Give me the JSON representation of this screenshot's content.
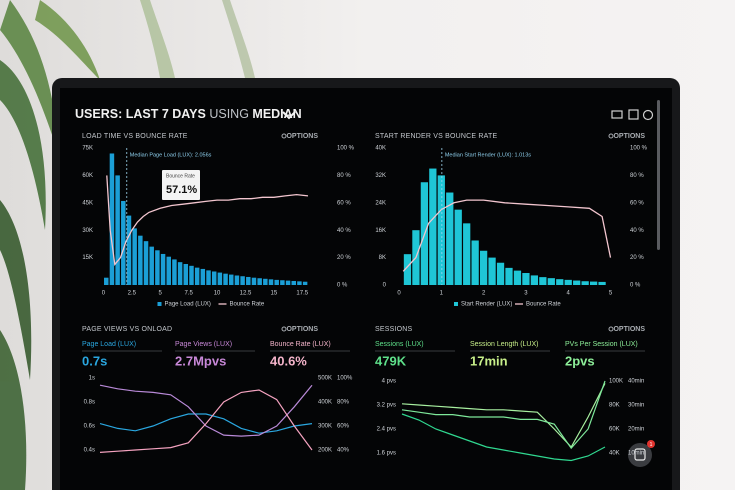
{
  "header": {
    "title": [
      "USERS:",
      "LAST 7 DAYS",
      "USING",
      "MEDIAN"
    ]
  },
  "chat_badge": 1,
  "panels": [
    {
      "title": "LOAD TIME VS BOUNCE RATE",
      "options": "OPTIONS",
      "chart": {
        "type": "histogram",
        "annotation": "Median Page Load (LUX): 2.056s",
        "median": 2.056,
        "tooltip": {
          "title": "Bounce Rate",
          "text": "57.1%"
        },
        "series": [
          {
            "name": "Page Load (LUX)",
            "color": "#1b9fd6"
          },
          {
            "name": "Bounce Rate",
            "color": "#f3c6cf"
          }
        ],
        "bins": [
          0,
          0.5,
          1,
          1.5,
          2,
          2.5,
          3,
          3.5,
          4,
          4.5,
          5,
          5.5,
          6,
          6.5,
          7,
          7.5,
          8,
          8.5,
          9,
          9.5,
          10,
          10.5,
          11,
          11.5,
          12,
          12.5,
          13,
          13.5,
          14,
          14.5,
          15,
          15.5,
          16,
          16.5,
          17,
          17.5,
          18
        ],
        "counts": [
          4000,
          72000,
          60000,
          46000,
          38000,
          31000,
          27000,
          24000,
          21000,
          19000,
          17000,
          15500,
          14000,
          12500,
          11500,
          10500,
          9500,
          8800,
          8000,
          7400,
          6800,
          6200,
          5700,
          5200,
          4800,
          4400,
          4000,
          3700,
          3400,
          3100,
          2800,
          2600,
          2400,
          2200,
          2000,
          1800
        ],
        "line": {
          "x": [
            0.3,
            0.6,
            1,
            1.5,
            2,
            2.5,
            3,
            3.5,
            4,
            5,
            6,
            7,
            8,
            9,
            10,
            11,
            12,
            13,
            14,
            15,
            16,
            17,
            18
          ],
          "values": [
            80,
            40,
            15,
            20,
            32,
            40,
            46,
            50,
            53,
            56,
            58,
            59,
            60,
            61,
            62,
            62,
            63,
            63,
            64,
            64,
            65,
            66,
            65
          ]
        },
        "xlim": [
          -0.3,
          19.5
        ],
        "xticks": [
          0,
          2.5,
          5,
          7.5,
          10,
          12.5,
          15,
          17.5
        ],
        "ylim": [
          0,
          75000
        ],
        "yticks": [
          {
            "value": 15000,
            "label": "15K"
          },
          {
            "value": 30000,
            "label": "30K"
          },
          {
            "value": 45000,
            "label": "45K"
          },
          {
            "value": 60000,
            "label": "60K"
          },
          {
            "value": 75000,
            "label": "75K"
          }
        ],
        "y2lim": [
          0,
          100
        ],
        "y2ticks": [
          {
            "value": 0,
            "label": "0 %"
          },
          {
            "value": 20,
            "label": "20 %"
          },
          {
            "value": 40,
            "label": "40 %"
          },
          {
            "value": 60,
            "label": "60 %"
          },
          {
            "value": 80,
            "label": "80 %"
          },
          {
            "value": 100,
            "label": "100 %"
          }
        ]
      }
    },
    {
      "title": "START RENDER VS BOUNCE RATE",
      "options": "OPTIONS",
      "chart": {
        "type": "histogram",
        "annotation": "Median Start Render (LUX): 1.013s",
        "median": 1.013,
        "series": [
          {
            "name": "Start Render (LUX)",
            "color": "#1fc6d6"
          },
          {
            "name": "Bounce Rate",
            "color": "#f3c6cf"
          }
        ],
        "bins": [
          0.1,
          0.3,
          0.5,
          0.7,
          0.9,
          1.1,
          1.3,
          1.5,
          1.7,
          1.9,
          2.1,
          2.3,
          2.5,
          2.7,
          2.9,
          3.1,
          3.3,
          3.5,
          3.7,
          3.9,
          4.1,
          4.3,
          4.5,
          4.7,
          4.9
        ],
        "counts": [
          9000,
          16000,
          30000,
          34000,
          32000,
          27000,
          22000,
          18000,
          13000,
          10000,
          8000,
          6500,
          5000,
          4200,
          3500,
          2800,
          2300,
          2000,
          1700,
          1500,
          1300,
          1100,
          1000,
          900
        ],
        "line": {
          "x": [
            0.1,
            0.4,
            0.7,
            1,
            1.3,
            1.6,
            2,
            2.5,
            3,
            3.5,
            4,
            4.5,
            4.8,
            5
          ],
          "values": [
            10,
            20,
            45,
            55,
            60,
            62,
            62,
            60,
            59,
            58,
            57,
            56,
            50,
            20
          ]
        },
        "xlim": [
          0,
          5.2
        ],
        "xticks": [
          0,
          1,
          2,
          3,
          4,
          5
        ],
        "ylim": [
          0,
          40000
        ],
        "yticks": [
          0,
          {
            "value": 8000,
            "label": "8K"
          },
          {
            "value": 16000,
            "label": "16K"
          },
          {
            "value": 24000,
            "label": "24K"
          },
          {
            "value": 32000,
            "label": "32K"
          },
          {
            "value": 40000,
            "label": "40K"
          }
        ],
        "y2lim": [
          0,
          100
        ],
        "y2ticks": [
          {
            "value": 0,
            "label": "0 %"
          },
          {
            "value": 20,
            "label": "20 %"
          },
          {
            "value": 40,
            "label": "40 %"
          },
          {
            "value": 60,
            "label": "60 %"
          },
          {
            "value": 80,
            "label": "80 %"
          },
          {
            "value": 100,
            "label": "100 %"
          }
        ]
      }
    },
    {
      "title": "PAGE VIEWS VS ONLOAD",
      "options": "OPTIONS",
      "metrics": [
        {
          "label": "Page Load (LUX)",
          "value": "0.7s",
          "color": "#2aa7e0"
        },
        {
          "label": "Page Views (LUX)",
          "value": "2.7Mpvs",
          "color": "#c888d8"
        },
        {
          "label": "Bounce Rate (LUX)",
          "value": "40.6%",
          "color": "#f4b4ca"
        }
      ],
      "chart": {
        "type": "line",
        "ylim": [
          0.3,
          1.05
        ],
        "yticks": [
          {
            "value": 0.4,
            "label": "0.4s"
          },
          {
            "value": 0.6,
            "label": "0.6s"
          },
          {
            "value": 0.8,
            "label": "0.8s"
          },
          {
            "value": 1,
            "label": "1s"
          }
        ],
        "y2lim": [
          150000,
          525000
        ],
        "y2ticks": [
          {
            "value": 200000,
            "label": "200K"
          },
          {
            "value": 300000,
            "label": "300K"
          },
          {
            "value": 400000,
            "label": "400K"
          },
          {
            "value": 500000,
            "label": "500K"
          }
        ],
        "y3lim": [
          30,
          105
        ],
        "y3ticks": [
          {
            "value": 40,
            "label": "40%"
          },
          {
            "value": 60,
            "label": "60%"
          },
          {
            "value": 80,
            "label": "80%"
          },
          {
            "value": 100,
            "label": "100%"
          }
        ],
        "series": [
          {
            "axis": "y",
            "color": "#2aa7e0",
            "values": [
              0.62,
              0.58,
              0.56,
              0.6,
              0.66,
              0.7,
              0.7,
              0.66,
              0.58,
              0.54,
              0.56,
              0.6,
              0.62
            ]
          },
          {
            "axis": "y2",
            "color": "#b98ad8",
            "values": [
              470000,
              455000,
              445000,
              440000,
              430000,
              380000,
              300000,
              262000,
              258000,
              262000,
              300000,
              380000,
              470000
            ]
          },
          {
            "axis": "y3",
            "color": "#f5a3c0",
            "values": [
              38,
              39,
              40,
              41,
              42,
              46,
              62,
              80,
              88,
              90,
              82,
              60,
              40
            ]
          }
        ]
      }
    },
    {
      "title": "SESSIONS",
      "options": "OPTIONS",
      "metrics": [
        {
          "label": "Sessions (LUX)",
          "value": "479K",
          "color": "#5ee08a"
        },
        {
          "label": "Session Length (LUX)",
          "value": "17min",
          "color": "#c8f08a"
        },
        {
          "label": "PVs Per Session (LUX)",
          "value": "2pvs",
          "color": "#8ef09a"
        }
      ],
      "chart": {
        "type": "line",
        "ylim": [
          1.3,
          4.3
        ],
        "yticks": [
          {
            "value": 1.6,
            "label": "1.6 pvs"
          },
          {
            "value": 2.4,
            "label": "2.4 pvs"
          },
          {
            "value": 3.2,
            "label": "3.2 pvs"
          },
          {
            "value": 4,
            "label": "4 pvs"
          }
        ],
        "y2lim": [
          32500,
          107500
        ],
        "y2ticks": [
          {
            "value": 40000,
            "label": "40K"
          },
          {
            "value": 60000,
            "label": "60K"
          },
          {
            "value": 80000,
            "label": "80K"
          },
          {
            "value": 100000,
            "label": "100K"
          }
        ],
        "y3lim": [
          6.25,
          43.75
        ],
        "y3ticks": [
          {
            "value": 10,
            "label": "10min"
          },
          {
            "value": 20,
            "label": "20min"
          },
          {
            "value": 30,
            "label": "30min"
          },
          {
            "value": 40,
            "label": "40min"
          }
        ],
        "series": [
          {
            "axis": "y2",
            "color": "#a8f0a0",
            "values": [
              81000,
              80000,
              79000,
              78000,
              77000,
              76000,
              76000,
              75000,
              74000,
              60000,
              45000,
              70000,
              98000
            ]
          },
          {
            "axis": "y",
            "color": "#30d890",
            "values": [
              2.9,
              2.7,
              2.4,
              2.2,
              2.0,
              1.8,
              1.7,
              1.6,
              1.5,
              1.4,
              1.35,
              1.5,
              1.8
            ]
          },
          {
            "axis": "y3",
            "color": "#7ee89a",
            "values": [
              28,
              27,
              26,
              26,
              25,
              25,
              25,
              24,
              24,
              22,
              12,
              20,
              40
            ]
          }
        ]
      }
    }
  ]
}
